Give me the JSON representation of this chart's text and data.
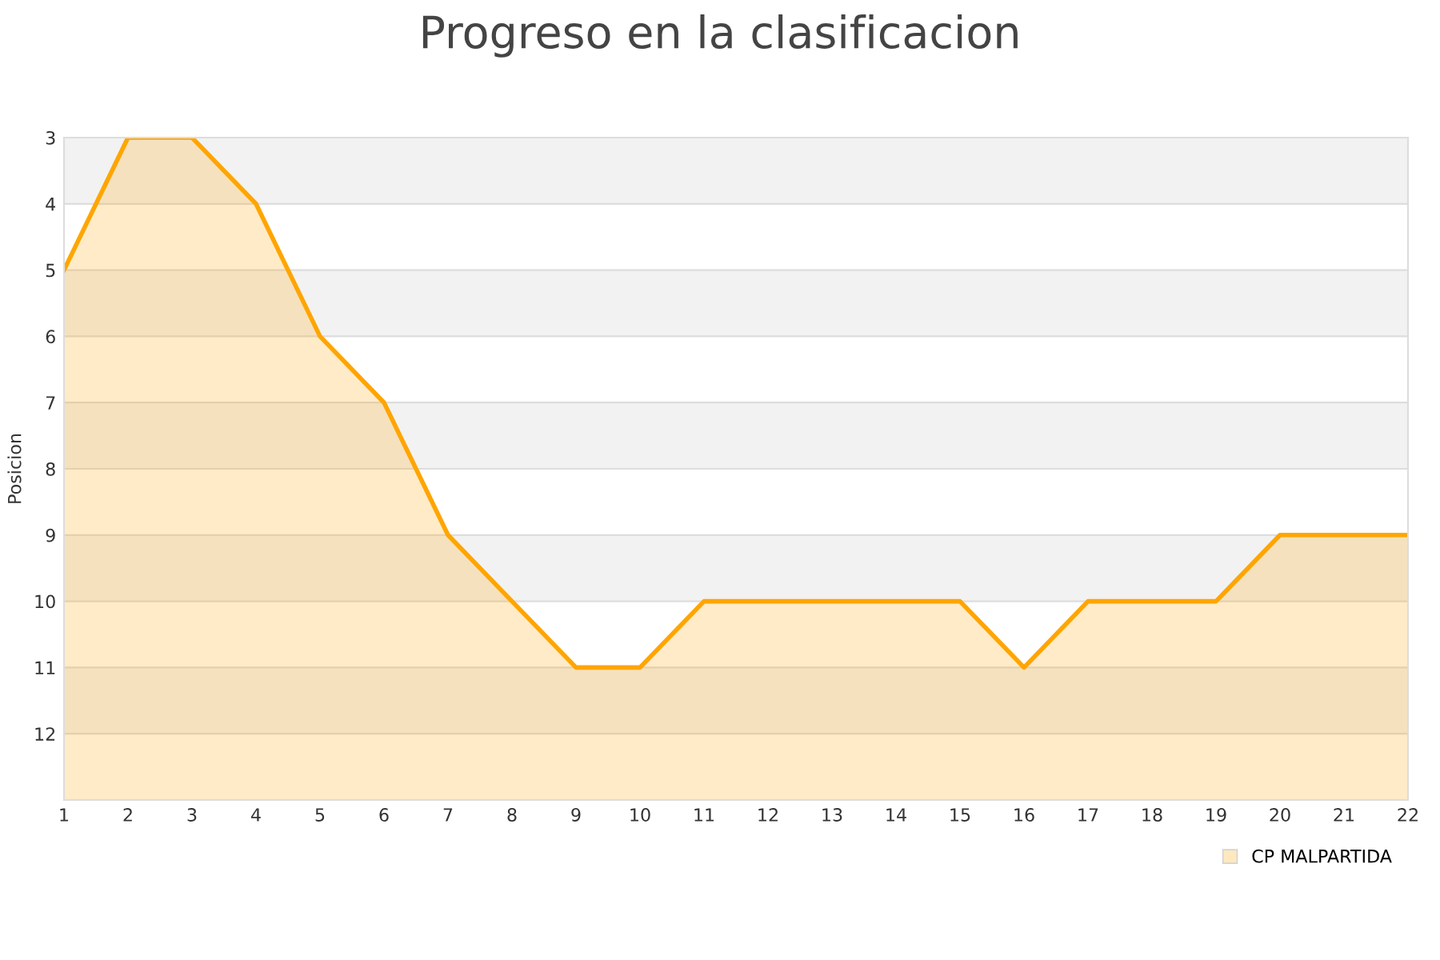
{
  "chart_data": {
    "type": "area",
    "title": "Progreso en la clasificacion",
    "ylabel": "Posicion",
    "x": [
      1,
      2,
      3,
      4,
      5,
      6,
      7,
      8,
      9,
      10,
      11,
      12,
      13,
      14,
      15,
      16,
      17,
      18,
      19,
      20,
      21,
      22
    ],
    "series": [
      {
        "name": "CP MALPARTIDA",
        "color": "#ffa500",
        "values": [
          5,
          3,
          3,
          4,
          6,
          7,
          9,
          10,
          11,
          11,
          10,
          10,
          10,
          10,
          10,
          11,
          10,
          10,
          10,
          9,
          9,
          9
        ]
      }
    ],
    "xlim": [
      1,
      22
    ],
    "xticks": [
      1,
      2,
      3,
      4,
      5,
      6,
      7,
      8,
      9,
      10,
      11,
      12,
      13,
      14,
      15,
      16,
      17,
      18,
      19,
      20,
      21,
      22
    ],
    "ylim": [
      13,
      3
    ],
    "yticks": [
      3,
      4,
      5,
      6,
      7,
      8,
      9,
      10,
      11,
      12
    ],
    "bands": [
      {
        "axis": "y",
        "from": 3,
        "to": 4,
        "color": "#f2f2f2"
      },
      {
        "axis": "y",
        "from": 5,
        "to": 6,
        "color": "#f2f2f2"
      },
      {
        "axis": "y",
        "from": 7,
        "to": 8,
        "color": "#f2f2f2"
      },
      {
        "axis": "y",
        "from": 9,
        "to": 10,
        "color": "#f2f2f2"
      },
      {
        "axis": "y",
        "from": 11,
        "to": 12,
        "color": "#f2f2f2"
      }
    ],
    "grid": "y",
    "legend": "bottom right",
    "marker": "none",
    "line_style": "solid"
  }
}
